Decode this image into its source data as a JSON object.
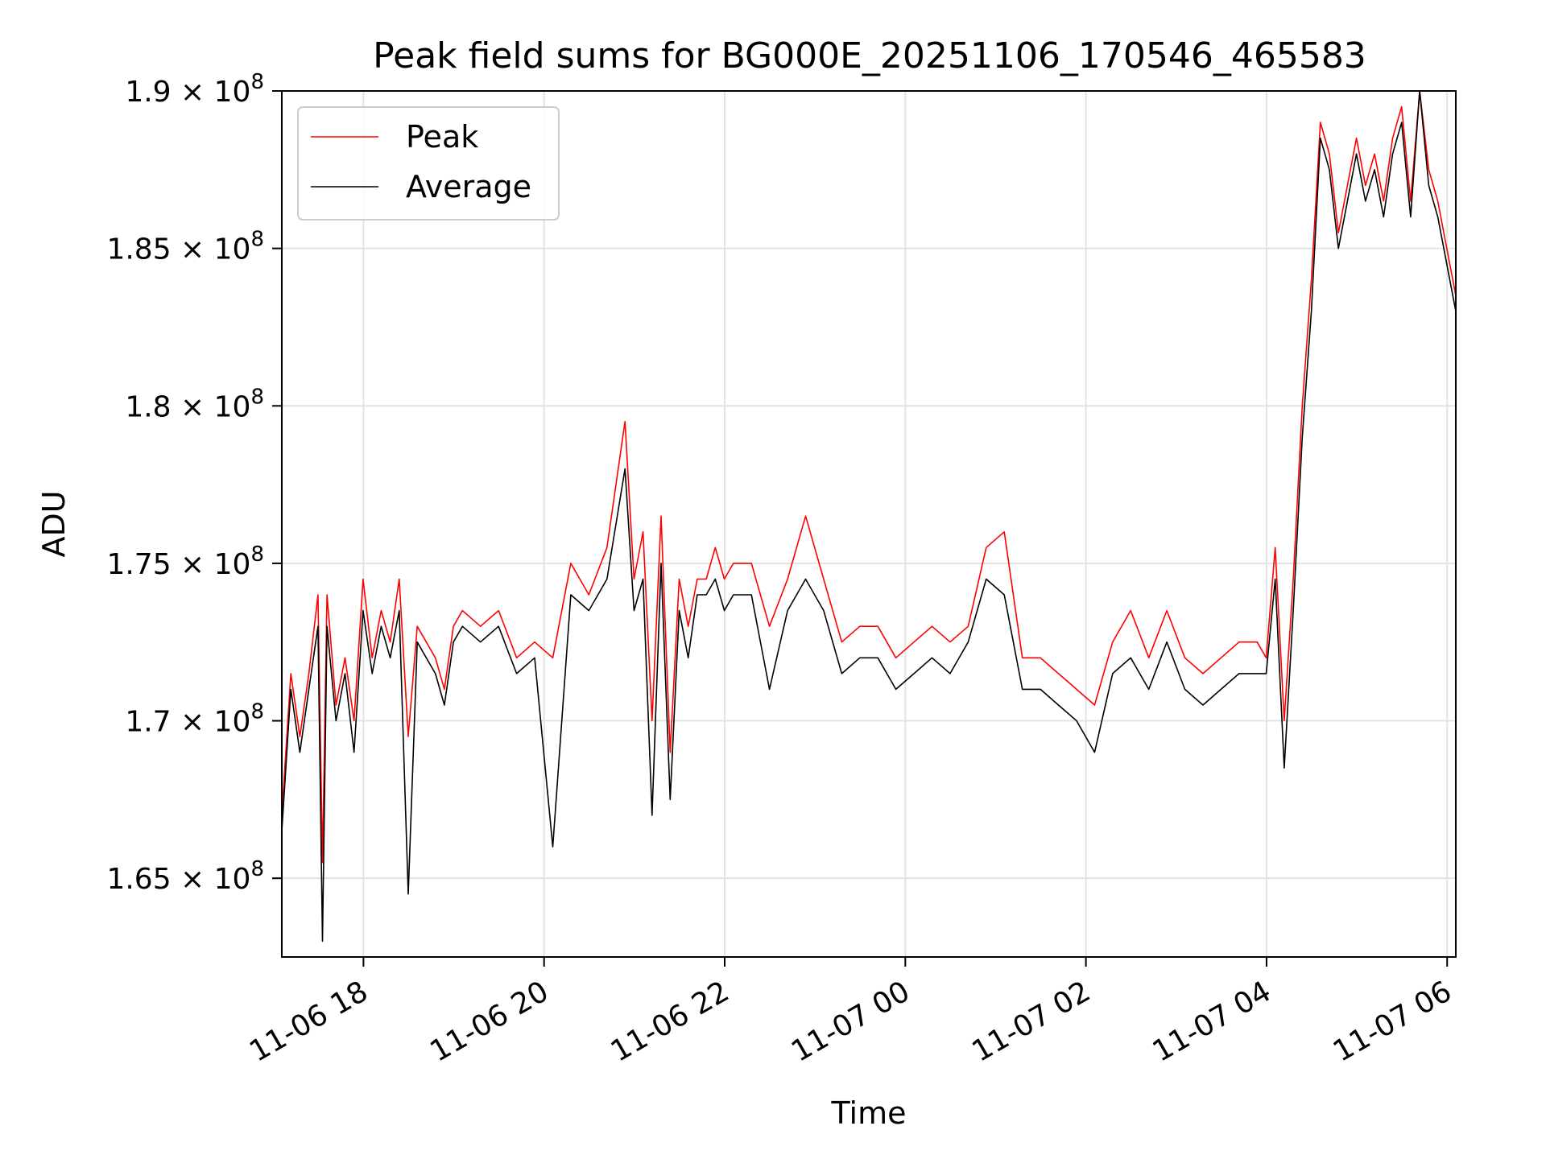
{
  "chart_data": {
    "type": "line",
    "title": "Peak field sums for BG000E_20251106_170546_465583",
    "xlabel": "Time",
    "ylabel": "ADU",
    "x_unit": "hours since 2025-11-06 17:05:46",
    "xlim": [
      0.0,
      13.0
    ],
    "ylim": [
      162500000.0,
      190000000.0
    ],
    "grid": true,
    "legend_position": "upper-left",
    "x_ticks": [
      {
        "value": 0.904,
        "label": "11-06 18"
      },
      {
        "value": 2.904,
        "label": "11-06 20"
      },
      {
        "value": 4.904,
        "label": "11-06 22"
      },
      {
        "value": 6.904,
        "label": "11-07 00"
      },
      {
        "value": 8.904,
        "label": "11-07 02"
      },
      {
        "value": 10.904,
        "label": "11-07 04"
      },
      {
        "value": 12.904,
        "label": "11-07 06"
      }
    ],
    "y_ticks": [
      {
        "value": 165000000.0,
        "mantissa": "1.65",
        "exponent": "8"
      },
      {
        "value": 170000000.0,
        "mantissa": "1.7",
        "exponent": "8"
      },
      {
        "value": 175000000.0,
        "mantissa": "1.75",
        "exponent": "8"
      },
      {
        "value": 180000000.0,
        "mantissa": "1.8",
        "exponent": "8"
      },
      {
        "value": 185000000.0,
        "mantissa": "1.85",
        "exponent": "8"
      },
      {
        "value": 190000000.0,
        "mantissa": "1.9",
        "exponent": "8"
      }
    ],
    "tick_multiplier": "× 10",
    "series": [
      {
        "name": "Peak",
        "color": "#ff0000",
        "x": [
          0.0,
          0.1,
          0.2,
          0.3,
          0.4,
          0.45,
          0.5,
          0.6,
          0.7,
          0.8,
          0.9,
          1.0,
          1.1,
          1.2,
          1.3,
          1.4,
          1.5,
          1.6,
          1.7,
          1.8,
          1.9,
          2.0,
          2.2,
          2.4,
          2.6,
          2.8,
          3.0,
          3.2,
          3.4,
          3.6,
          3.8,
          3.9,
          4.0,
          4.1,
          4.2,
          4.3,
          4.4,
          4.5,
          4.6,
          4.7,
          4.8,
          4.9,
          5.0,
          5.2,
          5.4,
          5.6,
          5.8,
          6.0,
          6.2,
          6.4,
          6.6,
          6.8,
          7.0,
          7.2,
          7.4,
          7.6,
          7.8,
          8.0,
          8.2,
          8.4,
          8.6,
          8.8,
          9.0,
          9.2,
          9.4,
          9.6,
          9.8,
          10.0,
          10.2,
          10.4,
          10.6,
          10.8,
          10.9,
          11.0,
          11.1,
          11.2,
          11.3,
          11.4,
          11.5,
          11.6,
          11.7,
          11.8,
          11.9,
          12.0,
          12.1,
          12.2,
          12.3,
          12.4,
          12.5,
          12.6,
          12.7,
          12.8,
          12.9,
          13.0
        ],
        "values": [
          167000000.0,
          171500000.0,
          169500000.0,
          171500000.0,
          174000000.0,
          165500000.0,
          174000000.0,
          170500000.0,
          172000000.0,
          170000000.0,
          174500000.0,
          172000000.0,
          173500000.0,
          172500000.0,
          174500000.0,
          169500000.0,
          173000000.0,
          172500000.0,
          172000000.0,
          171000000.0,
          173000000.0,
          173500000.0,
          173000000.0,
          173500000.0,
          172000000.0,
          172500000.0,
          172000000.0,
          175000000.0,
          174000000.0,
          175500000.0,
          179500000.0,
          174500000.0,
          176000000.0,
          170000000.0,
          176500000.0,
          169000000.0,
          174500000.0,
          173000000.0,
          174500000.0,
          174500000.0,
          175500000.0,
          174500000.0,
          175000000.0,
          175000000.0,
          173000000.0,
          174500000.0,
          176500000.0,
          174500000.0,
          172500000.0,
          173000000.0,
          173000000.0,
          172000000.0,
          172500000.0,
          173000000.0,
          172500000.0,
          173000000.0,
          175500000.0,
          176000000.0,
          172000000.0,
          172000000.0,
          171500000.0,
          171000000.0,
          170500000.0,
          172500000.0,
          173500000.0,
          172000000.0,
          173500000.0,
          172000000.0,
          171500000.0,
          172000000.0,
          172500000.0,
          172500000.0,
          172000000.0,
          175500000.0,
          170000000.0,
          174500000.0,
          180000000.0,
          184000000.0,
          189000000.0,
          188000000.0,
          185500000.0,
          187000000.0,
          188500000.0,
          187000000.0,
          188000000.0,
          186500000.0,
          188500000.0,
          189500000.0,
          186500000.0,
          190000000.0,
          187500000.0,
          186500000.0,
          185000000.0,
          183500000.0
        ]
      },
      {
        "name": "Average",
        "color": "#000000",
        "x": [
          0.0,
          0.1,
          0.2,
          0.3,
          0.4,
          0.45,
          0.5,
          0.6,
          0.7,
          0.8,
          0.9,
          1.0,
          1.1,
          1.2,
          1.3,
          1.4,
          1.5,
          1.6,
          1.7,
          1.8,
          1.9,
          2.0,
          2.2,
          2.4,
          2.6,
          2.8,
          3.0,
          3.2,
          3.4,
          3.6,
          3.8,
          3.9,
          4.0,
          4.1,
          4.2,
          4.3,
          4.4,
          4.5,
          4.6,
          4.7,
          4.8,
          4.9,
          5.0,
          5.2,
          5.4,
          5.6,
          5.8,
          6.0,
          6.2,
          6.4,
          6.6,
          6.8,
          7.0,
          7.2,
          7.4,
          7.6,
          7.8,
          8.0,
          8.2,
          8.4,
          8.6,
          8.8,
          9.0,
          9.2,
          9.4,
          9.6,
          9.8,
          10.0,
          10.2,
          10.4,
          10.6,
          10.8,
          10.9,
          11.0,
          11.1,
          11.2,
          11.3,
          11.4,
          11.5,
          11.6,
          11.7,
          11.8,
          11.9,
          12.0,
          12.1,
          12.2,
          12.3,
          12.4,
          12.5,
          12.6,
          12.7,
          12.8,
          12.9,
          13.0
        ],
        "values": [
          166500000.0,
          171000000.0,
          169000000.0,
          171000000.0,
          173000000.0,
          163000000.0,
          173000000.0,
          170000000.0,
          171500000.0,
          169000000.0,
          173500000.0,
          171500000.0,
          173000000.0,
          172000000.0,
          173500000.0,
          164500000.0,
          172500000.0,
          172000000.0,
          171500000.0,
          170500000.0,
          172500000.0,
          173000000.0,
          172500000.0,
          173000000.0,
          171500000.0,
          172000000.0,
          166000000.0,
          174000000.0,
          173500000.0,
          174500000.0,
          178000000.0,
          173500000.0,
          174500000.0,
          167000000.0,
          175000000.0,
          167500000.0,
          173500000.0,
          172000000.0,
          174000000.0,
          174000000.0,
          174500000.0,
          173500000.0,
          174000000.0,
          174000000.0,
          171000000.0,
          173500000.0,
          174500000.0,
          173500000.0,
          171500000.0,
          172000000.0,
          172000000.0,
          171000000.0,
          171500000.0,
          172000000.0,
          171500000.0,
          172500000.0,
          174500000.0,
          174000000.0,
          171000000.0,
          171000000.0,
          170500000.0,
          170000000.0,
          169000000.0,
          171500000.0,
          172000000.0,
          171000000.0,
          172500000.0,
          171000000.0,
          170500000.0,
          171000000.0,
          171500000.0,
          171500000.0,
          171500000.0,
          174500000.0,
          168500000.0,
          173500000.0,
          179000000.0,
          183000000.0,
          188500000.0,
          187500000.0,
          185000000.0,
          186500000.0,
          188000000.0,
          186500000.0,
          187500000.0,
          186000000.0,
          188000000.0,
          189000000.0,
          186000000.0,
          190000000.0,
          187000000.0,
          186000000.0,
          184500000.0,
          183000000.0
        ]
      }
    ]
  }
}
